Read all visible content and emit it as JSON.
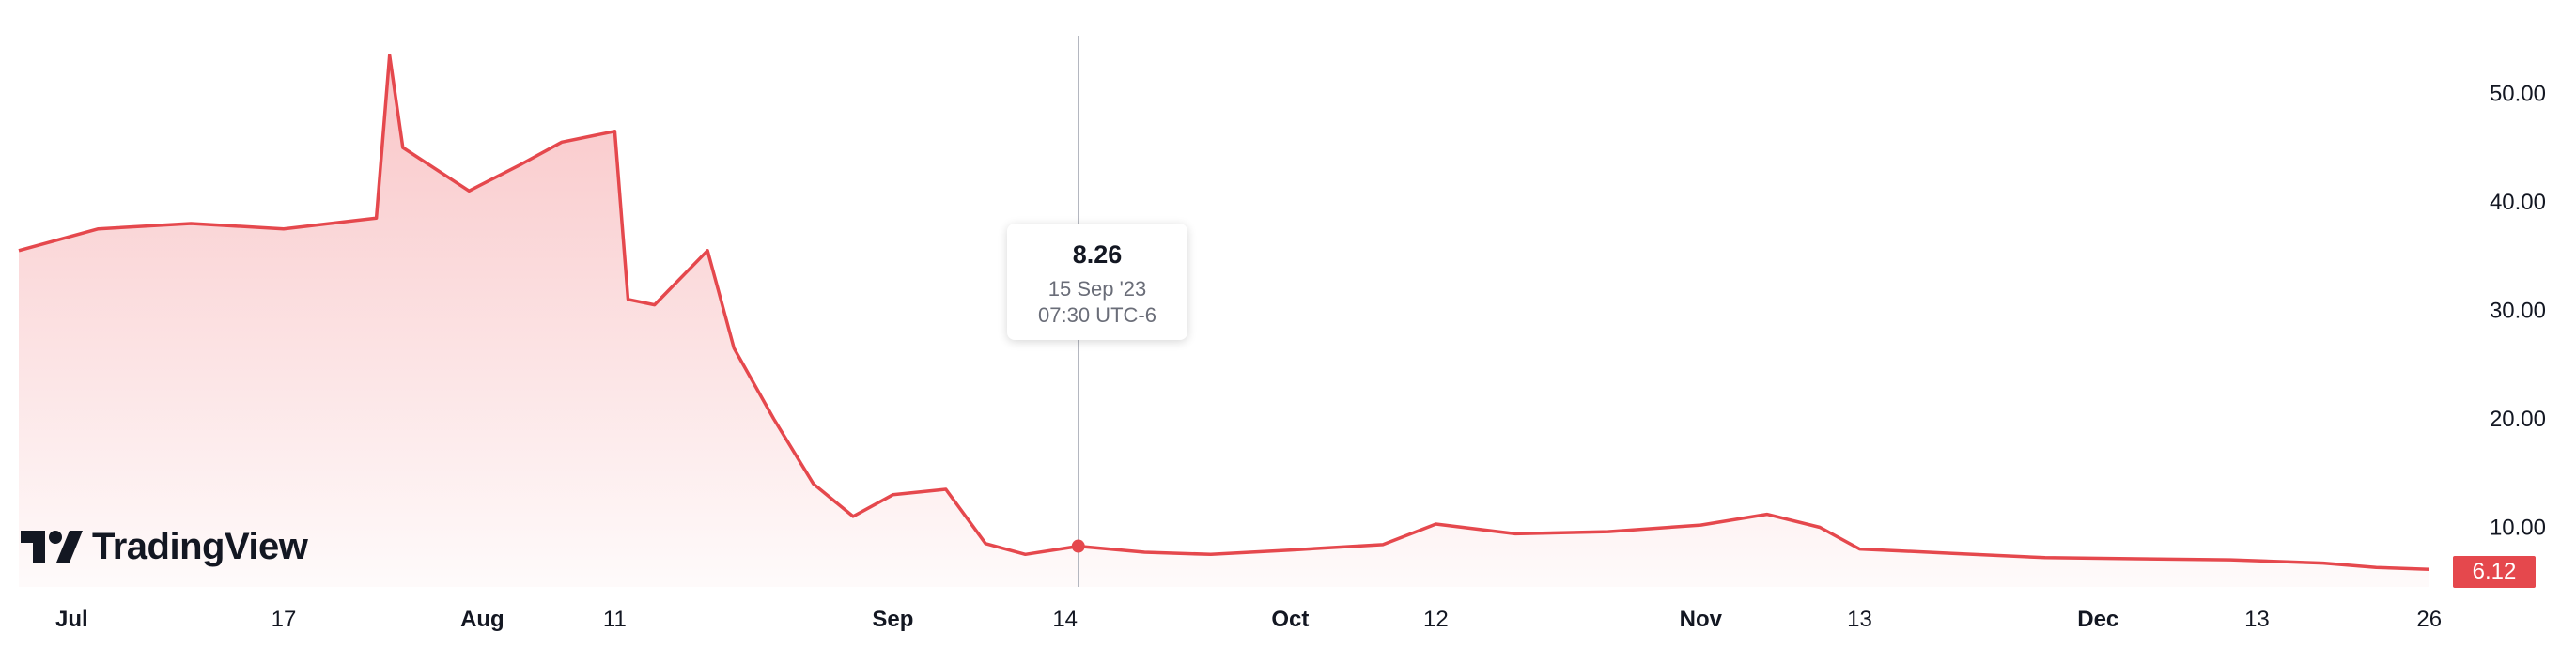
{
  "chart_data": {
    "type": "area",
    "x": [
      "2023-06-27",
      "2023-07-03",
      "2023-07-10",
      "2023-07-17",
      "2023-07-24",
      "2023-07-25",
      "2023-07-26",
      "2023-07-31",
      "2023-08-04",
      "2023-08-07",
      "2023-08-11",
      "2023-08-12",
      "2023-08-14",
      "2023-08-18",
      "2023-08-20",
      "2023-08-23",
      "2023-08-26",
      "2023-08-29",
      "2023-09-01",
      "2023-09-05",
      "2023-09-08",
      "2023-09-11",
      "2023-09-15",
      "2023-09-20",
      "2023-09-25",
      "2023-10-01",
      "2023-10-08",
      "2023-10-12",
      "2023-10-18",
      "2023-10-25",
      "2023-11-01",
      "2023-11-06",
      "2023-11-10",
      "2023-11-13",
      "2023-11-20",
      "2023-11-27",
      "2023-12-04",
      "2023-12-11",
      "2023-12-18",
      "2023-12-22",
      "2023-12-26"
    ],
    "values": [
      35.5,
      37.5,
      38,
      37.5,
      38.5,
      53.5,
      45,
      41,
      43.5,
      45.5,
      46.5,
      31,
      30.5,
      35.5,
      26.5,
      20,
      14,
      11,
      13,
      13.5,
      8.5,
      7.5,
      8.26,
      7.7,
      7.5,
      7.9,
      8.4,
      10.3,
      9.4,
      9.6,
      10.2,
      11.2,
      10.0,
      8.0,
      7.6,
      7.2,
      7.1,
      7.0,
      6.7,
      6.3,
      6.12
    ],
    "series": [
      {
        "values_ref": "values"
      }
    ],
    "ylim": [
      4.5,
      56
    ],
    "yticks": [
      "10.00",
      "20.00",
      "30.00",
      "40.00",
      "50.00"
    ],
    "xticks": [
      {
        "label": "Jul",
        "date": "2023-07-01",
        "major": true
      },
      {
        "label": "17",
        "date": "2023-07-17",
        "major": false
      },
      {
        "label": "Aug",
        "date": "2023-08-01",
        "major": true
      },
      {
        "label": "11",
        "date": "2023-08-11",
        "major": false
      },
      {
        "label": "Sep",
        "date": "2023-09-01",
        "major": true
      },
      {
        "label": "14",
        "date": "2023-09-14",
        "major": false
      },
      {
        "label": "Oct",
        "date": "2023-10-01",
        "major": true
      },
      {
        "label": "12",
        "date": "2023-10-12",
        "major": false
      },
      {
        "label": "Nov",
        "date": "2023-11-01",
        "major": true
      },
      {
        "label": "13",
        "date": "2023-11-13",
        "major": false
      },
      {
        "label": "Dec",
        "date": "2023-12-01",
        "major": true
      },
      {
        "label": "13",
        "date": "2023-12-13",
        "major": false
      },
      {
        "label": "26",
        "date": "2023-12-26",
        "major": false
      }
    ],
    "crosshair_date": "2023-09-15",
    "line_color": "#e5484d",
    "fill_color": "#f7c8ca",
    "grid": false
  },
  "tooltip": {
    "value": "8.26",
    "date": "15 Sep '23",
    "time": "07:30 UTC-6"
  },
  "last_price": "6.12",
  "logo": {
    "text": "TradingView"
  }
}
